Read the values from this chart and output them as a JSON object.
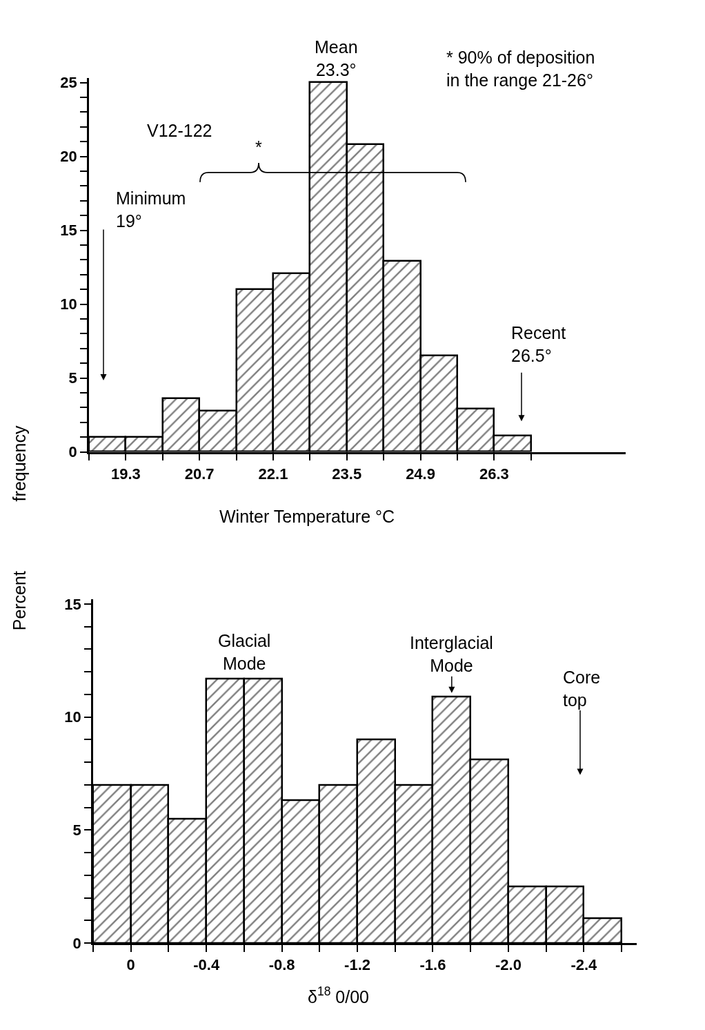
{
  "chart_data": [
    {
      "type": "histogram",
      "xlabel": "Winter Temperature °C",
      "ylabel": "frequency",
      "bins": [
        18.6,
        19.3,
        20.0,
        20.7,
        21.4,
        22.1,
        22.8,
        23.5,
        24.2,
        24.9,
        25.6,
        26.3,
        27.0
      ],
      "values": [
        1.0,
        1.0,
        3.6,
        2.8,
        11.0,
        12.1,
        25,
        20.8,
        12.9,
        6.5,
        2.9,
        1.1
      ],
      "color": "#000000",
      "xlim": [
        18.6,
        28.8
      ],
      "ylim": [
        0,
        25.3
      ],
      "xticks": [
        {
          "value": 18.6,
          "label": null
        },
        19.3,
        {
          "value": 20.0,
          "label": null
        },
        20.7,
        {
          "value": 21.4,
          "label": null
        },
        22.1,
        {
          "value": 22.8,
          "label": null
        },
        23.5,
        {
          "value": 24.2,
          "label": null
        },
        24.9,
        {
          "value": 25.6,
          "label": null
        },
        26.3,
        {
          "value": 27.0,
          "label": null
        }
      ],
      "yticks": [
        0,
        {
          "value": 1,
          "label": null
        },
        {
          "value": 2,
          "label": null
        },
        {
          "value": 3,
          "label": null
        },
        {
          "value": 4,
          "label": null
        },
        5,
        {
          "value": 6,
          "label": null
        },
        {
          "value": 7,
          "label": null
        },
        {
          "value": 8,
          "label": null
        },
        {
          "value": 9,
          "label": null
        },
        10,
        {
          "value": 11,
          "label": null
        },
        {
          "value": 12,
          "label": null
        },
        {
          "value": 13,
          "label": null
        },
        {
          "value": 14,
          "label": null
        },
        15,
        {
          "value": 16,
          "label": null
        },
        {
          "value": 17,
          "label": null
        },
        {
          "value": 18,
          "label": null
        },
        {
          "value": 19,
          "label": null
        },
        20,
        {
          "value": 21,
          "label": null
        },
        {
          "value": 22,
          "label": null
        },
        {
          "value": 23,
          "label": null
        },
        {
          "value": 24,
          "label": null
        },
        25
      ],
      "annotations": [
        {
          "text": "Mean\n23.3°",
          "x": 23.3,
          "y": 25
        },
        "V12-122",
        "* 90% of deposition\nin the range 21-26°",
        "*",
        "Minimum\n19°",
        "Recent\n26.5°"
      ]
    },
    {
      "type": "histogram",
      "xlabel": "δ$^{18}$ 0/00",
      "ylabel": "Percent",
      "bins": [
        0.2,
        0,
        -0.2,
        -0.4,
        -0.6,
        -0.8,
        -1.0,
        -1.2,
        -1.4,
        -1.6,
        -1.8,
        -2.0,
        -2.2,
        -2.4,
        -2.6
      ],
      "values": [
        7.0,
        7.0,
        5.5,
        11.7,
        11.7,
        6.3,
        7.0,
        9.0,
        7.0,
        10.9,
        8.1,
        2.5,
        2.5,
        1.1
      ],
      "color": "#000000",
      "xlim": [
        0.2,
        -2.68
      ],
      "ylim": [
        0,
        15.2
      ],
      "xticks": [
        {
          "value": 0.2,
          "label": null
        },
        0,
        {
          "value": -0.2,
          "label": null
        },
        -0.4,
        {
          "value": -0.6,
          "label": null
        },
        -0.8,
        {
          "value": -1.0,
          "label": null
        },
        -1.2,
        {
          "value": -1.4,
          "label": null
        },
        -1.6,
        {
          "value": -1.8,
          "label": null
        },
        {
          "value": -2.0,
          "label": "-2.0"
        },
        {
          "value": -2.2,
          "label": null
        },
        -2.4,
        {
          "value": -2.6,
          "label": null
        }
      ],
      "yticks": [
        0,
        {
          "value": 1,
          "label": null
        },
        {
          "value": 2,
          "label": null
        },
        {
          "value": 3,
          "label": null
        },
        {
          "value": 4,
          "label": null
        },
        5,
        {
          "value": 6,
          "label": null
        },
        {
          "value": 7,
          "label": null
        },
        {
          "value": 8,
          "label": null
        },
        {
          "value": 9,
          "label": null
        },
        10,
        {
          "value": 11,
          "label": null
        },
        {
          "value": 12,
          "label": null
        },
        {
          "value": 13,
          "label": null
        },
        {
          "value": 14,
          "label": null
        },
        15
      ],
      "annotations": [
        {
          "text": "Glacial\nMode",
          "x": -0.6,
          "y": 11.8
        },
        {
          "text": "Interglacial\nMode",
          "x": -1.7,
          "y": 11.0
        },
        "Core\ntop"
      ]
    }
  ]
}
